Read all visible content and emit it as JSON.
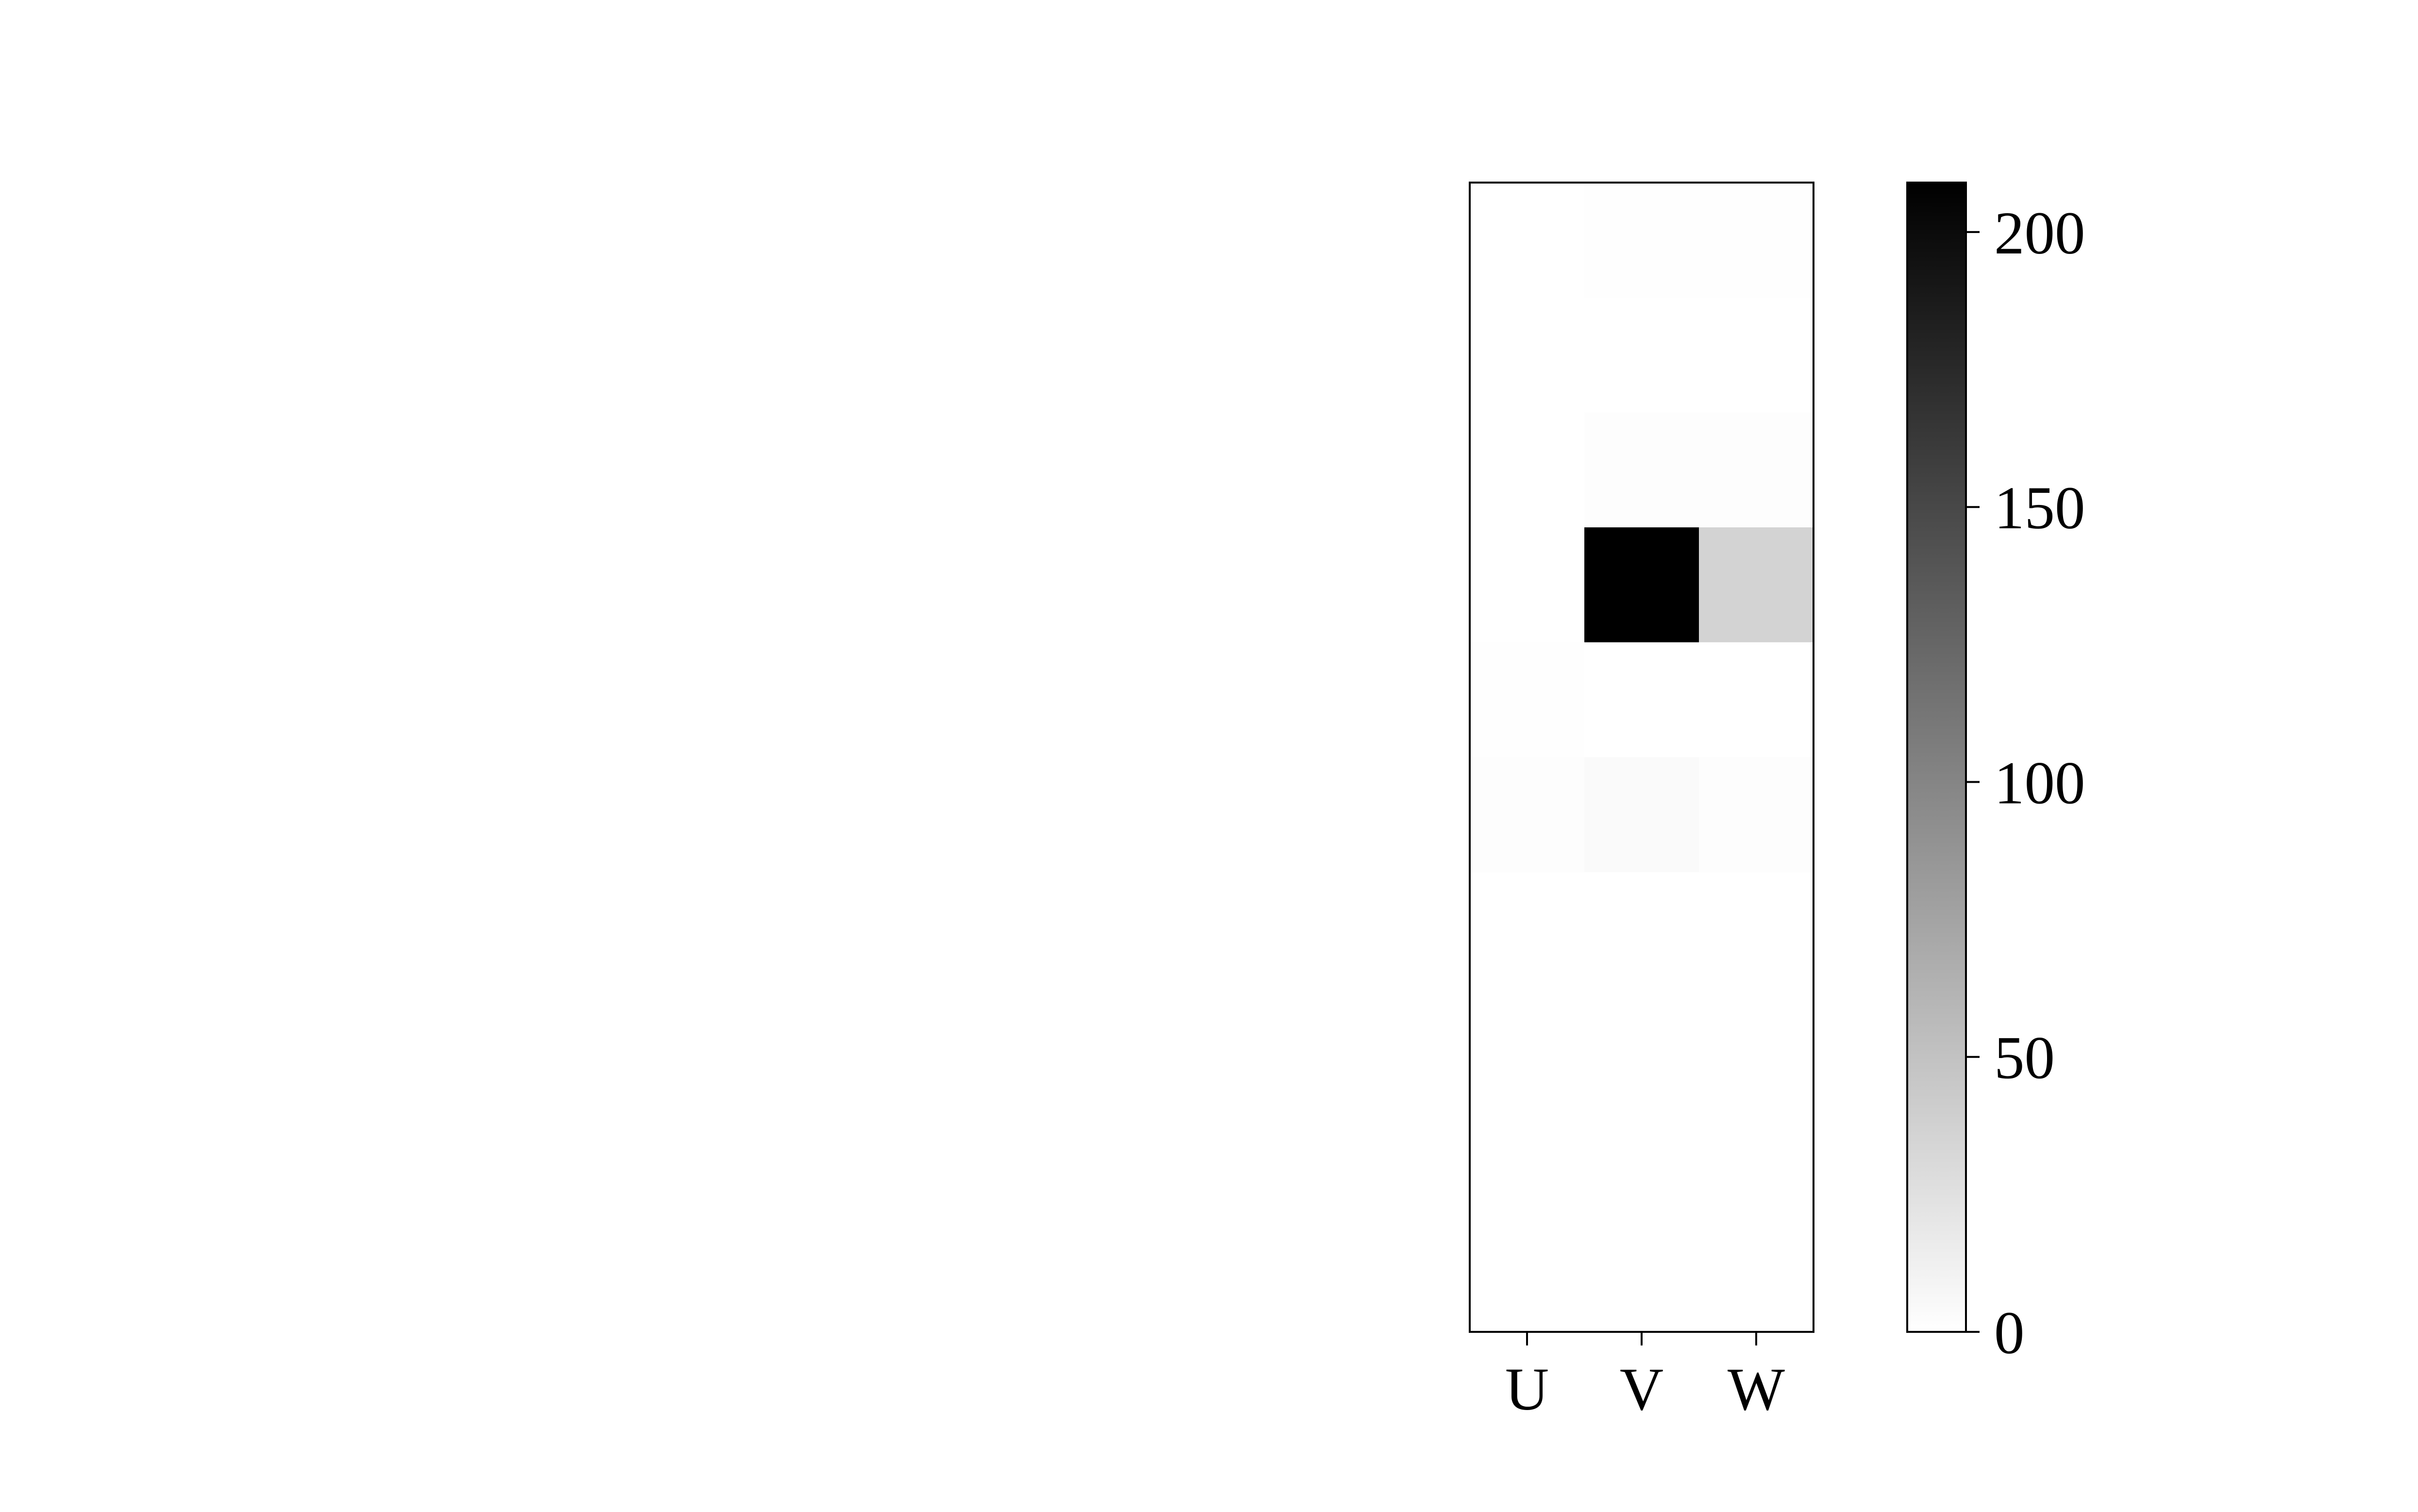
{
  "chart_data": {
    "type": "heatmap",
    "title": "",
    "xlabel": "",
    "ylabel": "",
    "x_categories": [
      "U",
      "V",
      "W"
    ],
    "rows": 10,
    "values": [
      [
        0,
        1,
        1
      ],
      [
        0,
        0,
        0
      ],
      [
        0,
        2,
        2
      ],
      [
        0,
        209,
        35
      ],
      [
        1,
        0,
        0
      ],
      [
        2,
        4,
        2
      ],
      [
        0,
        0,
        0
      ],
      [
        0,
        0,
        0
      ],
      [
        0,
        0,
        0
      ],
      [
        0,
        0,
        0
      ]
    ],
    "colormap": "greys",
    "colorbar": {
      "min": 0,
      "max": 209,
      "ticks": [
        0,
        50,
        100,
        150,
        200
      ],
      "tick_labels": [
        "0",
        "50",
        "100",
        "150",
        "200"
      ]
    },
    "grid": false,
    "colors": {
      "low": "#ffffff",
      "high": "#000000",
      "frame": "#000000"
    }
  }
}
